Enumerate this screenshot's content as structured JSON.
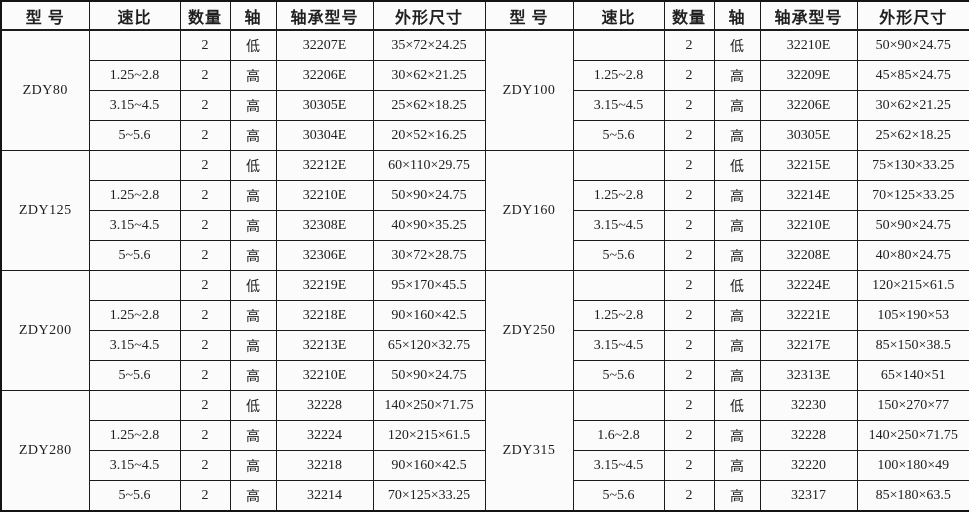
{
  "header": {
    "model": "型 号",
    "ratio": "速比",
    "qty": "数量",
    "shaft": "轴",
    "bearing": "轴承型号",
    "dims": "外形尺寸"
  },
  "left_blocks": [
    {
      "model": "ZDY80",
      "rows": [
        {
          "ratio": "",
          "qty": "2",
          "shaft": "低",
          "bearing": "32207E",
          "dims": "35×72×24.25"
        },
        {
          "ratio": "1.25~2.8",
          "qty": "2",
          "shaft": "高",
          "bearing": "32206E",
          "dims": "30×62×21.25"
        },
        {
          "ratio": "3.15~4.5",
          "qty": "2",
          "shaft": "高",
          "bearing": "30305E",
          "dims": "25×62×18.25"
        },
        {
          "ratio": "5~5.6",
          "qty": "2",
          "shaft": "高",
          "bearing": "30304E",
          "dims": "20×52×16.25"
        }
      ]
    },
    {
      "model": "ZDY125",
      "rows": [
        {
          "ratio": "",
          "qty": "2",
          "shaft": "低",
          "bearing": "32212E",
          "dims": "60×110×29.75"
        },
        {
          "ratio": "1.25~2.8",
          "qty": "2",
          "shaft": "高",
          "bearing": "32210E",
          "dims": "50×90×24.75"
        },
        {
          "ratio": "3.15~4.5",
          "qty": "2",
          "shaft": "高",
          "bearing": "32308E",
          "dims": "40×90×35.25"
        },
        {
          "ratio": "5~5.6",
          "qty": "2",
          "shaft": "高",
          "bearing": "32306E",
          "dims": "30×72×28.75"
        }
      ]
    },
    {
      "model": "ZDY200",
      "rows": [
        {
          "ratio": "",
          "qty": "2",
          "shaft": "低",
          "bearing": "32219E",
          "dims": "95×170×45.5"
        },
        {
          "ratio": "1.25~2.8",
          "qty": "2",
          "shaft": "高",
          "bearing": "32218E",
          "dims": "90×160×42.5"
        },
        {
          "ratio": "3.15~4.5",
          "qty": "2",
          "shaft": "高",
          "bearing": "32213E",
          "dims": "65×120×32.75"
        },
        {
          "ratio": "5~5.6",
          "qty": "2",
          "shaft": "高",
          "bearing": "32210E",
          "dims": "50×90×24.75"
        }
      ]
    },
    {
      "model": "ZDY280",
      "rows": [
        {
          "ratio": "",
          "qty": "2",
          "shaft": "低",
          "bearing": "32228",
          "dims": "140×250×71.75"
        },
        {
          "ratio": "1.25~2.8",
          "qty": "2",
          "shaft": "高",
          "bearing": "32224",
          "dims": "120×215×61.5"
        },
        {
          "ratio": "3.15~4.5",
          "qty": "2",
          "shaft": "高",
          "bearing": "32218",
          "dims": "90×160×42.5"
        },
        {
          "ratio": "5~5.6",
          "qty": "2",
          "shaft": "高",
          "bearing": "32214",
          "dims": "70×125×33.25"
        }
      ]
    }
  ],
  "right_blocks": [
    {
      "model": "ZDY100",
      "rows": [
        {
          "ratio": "",
          "qty": "2",
          "shaft": "低",
          "bearing": "32210E",
          "dims": "50×90×24.75"
        },
        {
          "ratio": "1.25~2.8",
          "qty": "2",
          "shaft": "高",
          "bearing": "32209E",
          "dims": "45×85×24.75"
        },
        {
          "ratio": "3.15~4.5",
          "qty": "2",
          "shaft": "高",
          "bearing": "32206E",
          "dims": "30×62×21.25"
        },
        {
          "ratio": "5~5.6",
          "qty": "2",
          "shaft": "高",
          "bearing": "30305E",
          "dims": "25×62×18.25"
        }
      ]
    },
    {
      "model": "ZDY160",
      "rows": [
        {
          "ratio": "",
          "qty": "2",
          "shaft": "低",
          "bearing": "32215E",
          "dims": "75×130×33.25"
        },
        {
          "ratio": "1.25~2.8",
          "qty": "2",
          "shaft": "高",
          "bearing": "32214E",
          "dims": "70×125×33.25"
        },
        {
          "ratio": "3.15~4.5",
          "qty": "2",
          "shaft": "高",
          "bearing": "32210E",
          "dims": "50×90×24.75"
        },
        {
          "ratio": "5~5.6",
          "qty": "2",
          "shaft": "高",
          "bearing": "32208E",
          "dims": "40×80×24.75"
        }
      ]
    },
    {
      "model": "ZDY250",
      "rows": [
        {
          "ratio": "",
          "qty": "2",
          "shaft": "低",
          "bearing": "32224E",
          "dims": "120×215×61.5"
        },
        {
          "ratio": "1.25~2.8",
          "qty": "2",
          "shaft": "高",
          "bearing": "32221E",
          "dims": "105×190×53"
        },
        {
          "ratio": "3.15~4.5",
          "qty": "2",
          "shaft": "高",
          "bearing": "32217E",
          "dims": "85×150×38.5"
        },
        {
          "ratio": "5~5.6",
          "qty": "2",
          "shaft": "高",
          "bearing": "32313E",
          "dims": "65×140×51"
        }
      ]
    },
    {
      "model": "ZDY315",
      "rows": [
        {
          "ratio": "",
          "qty": "2",
          "shaft": "低",
          "bearing": "32230",
          "dims": "150×270×77"
        },
        {
          "ratio": "1.6~2.8",
          "qty": "2",
          "shaft": "高",
          "bearing": "32228",
          "dims": "140×250×71.75"
        },
        {
          "ratio": "3.15~4.5",
          "qty": "2",
          "shaft": "高",
          "bearing": "32220",
          "dims": "100×180×49"
        },
        {
          "ratio": "5~5.6",
          "qty": "2",
          "shaft": "高",
          "bearing": "32317",
          "dims": "85×180×63.5"
        }
      ]
    }
  ]
}
